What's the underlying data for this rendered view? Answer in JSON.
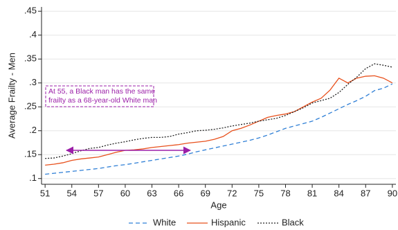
{
  "chart_data": {
    "type": "line",
    "y_label": "Average Frailty - Men",
    "x_label": "Age",
    "x": [
      51,
      52,
      53,
      54,
      55,
      56,
      57,
      58,
      59,
      60,
      61,
      62,
      63,
      64,
      65,
      66,
      67,
      68,
      69,
      70,
      71,
      72,
      73,
      74,
      75,
      76,
      77,
      78,
      79,
      80,
      81,
      82,
      83,
      84,
      85,
      86,
      87,
      88,
      89,
      90
    ],
    "xlim": [
      50.6,
      90.4
    ],
    "xticks": [
      51,
      54,
      57,
      60,
      63,
      66,
      69,
      72,
      75,
      78,
      81,
      84,
      87,
      90
    ],
    "ylim": [
      0.088,
      0.459
    ],
    "yticks": [
      {
        "value": 0.1,
        "label": ".1"
      },
      {
        "value": 0.15,
        "label": ".15"
      },
      {
        "value": 0.2,
        "label": ".2"
      },
      {
        "value": 0.25,
        "label": ".25"
      },
      {
        "value": 0.3,
        "label": ".3"
      },
      {
        "value": 0.35,
        "label": ".35"
      },
      {
        "value": 0.4,
        "label": ".4"
      },
      {
        "value": 0.45,
        "label": ".45"
      }
    ],
    "grid": true,
    "legend": "bottom",
    "series": [
      {
        "name": "White",
        "color": "#2f7fd6",
        "style": "dashed",
        "values": [
          0.109,
          0.111,
          0.113,
          0.115,
          0.117,
          0.119,
          0.121,
          0.124,
          0.127,
          0.129,
          0.132,
          0.135,
          0.138,
          0.141,
          0.144,
          0.147,
          0.151,
          0.156,
          0.16,
          0.164,
          0.168,
          0.172,
          0.176,
          0.18,
          0.185,
          0.191,
          0.198,
          0.205,
          0.21,
          0.215,
          0.22,
          0.228,
          0.237,
          0.246,
          0.255,
          0.263,
          0.272,
          0.284,
          0.289,
          0.298
        ]
      },
      {
        "name": "Hispanic",
        "color": "#e8501c",
        "style": "solid",
        "values": [
          0.128,
          0.13,
          0.133,
          0.138,
          0.141,
          0.143,
          0.145,
          0.15,
          0.155,
          0.159,
          0.16,
          0.162,
          0.165,
          0.167,
          0.169,
          0.171,
          0.174,
          0.176,
          0.178,
          0.182,
          0.188,
          0.2,
          0.205,
          0.212,
          0.22,
          0.228,
          0.232,
          0.235,
          0.24,
          0.25,
          0.26,
          0.268,
          0.285,
          0.31,
          0.3,
          0.31,
          0.314,
          0.315,
          0.31,
          0.3
        ]
      },
      {
        "name": "Black",
        "color": "#222222",
        "style": "dotted",
        "values": [
          0.142,
          0.143,
          0.147,
          0.152,
          0.158,
          0.163,
          0.165,
          0.17,
          0.174,
          0.177,
          0.181,
          0.184,
          0.186,
          0.186,
          0.188,
          0.193,
          0.196,
          0.2,
          0.201,
          0.203,
          0.206,
          0.21,
          0.213,
          0.216,
          0.22,
          0.223,
          0.226,
          0.232,
          0.24,
          0.248,
          0.258,
          0.263,
          0.268,
          0.28,
          0.297,
          0.312,
          0.33,
          0.34,
          0.337,
          0.333
        ]
      }
    ],
    "annotation": {
      "lines": [
        "At 55, a Black man has the same",
        "frailty as a 68-year-old White man"
      ],
      "color": "#9b1fa8",
      "arrow_x": [
        53.4,
        67.3
      ],
      "arrow_y": 0.159
    }
  }
}
